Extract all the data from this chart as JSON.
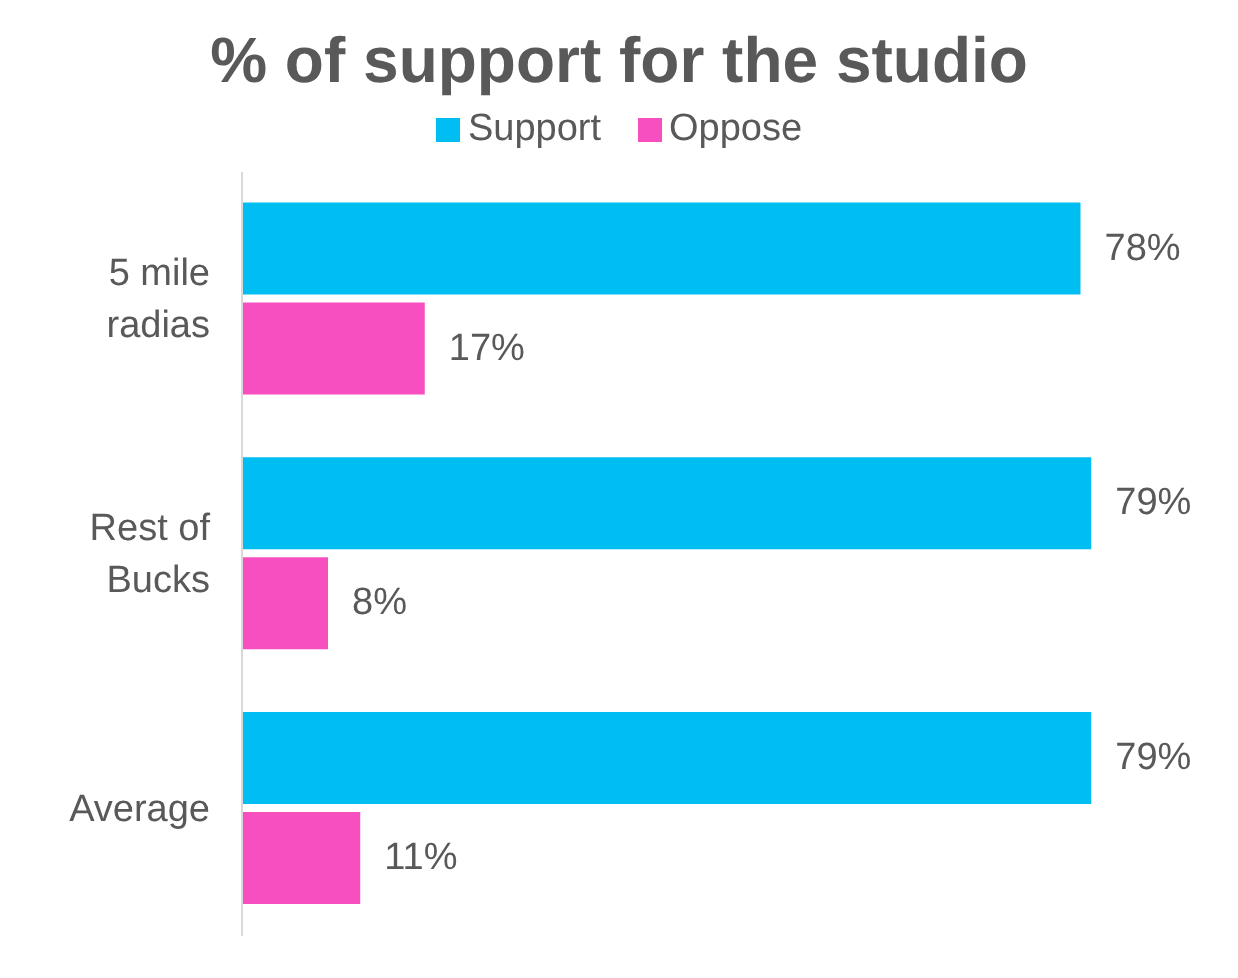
{
  "chart_data": {
    "type": "bar",
    "orientation": "horizontal",
    "title": "% of support for the studio",
    "categories": [
      "5 mile radias",
      "Rest of Bucks",
      "Average"
    ],
    "series": [
      {
        "name": "Support",
        "color": "#00bef2",
        "values": [
          78,
          79,
          79
        ],
        "value_labels": [
          "78%",
          "79%",
          "79%"
        ]
      },
      {
        "name": "Oppose",
        "color": "#f74fbf",
        "values": [
          17,
          8,
          11
        ],
        "value_labels": [
          "17%",
          "8%",
          "11%"
        ]
      }
    ],
    "tick_labels": "y",
    "legend": "top",
    "grid": false
  }
}
